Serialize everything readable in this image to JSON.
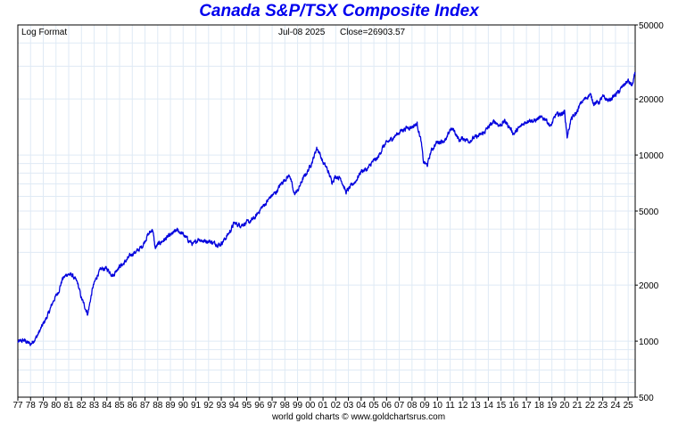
{
  "title": "Canada S&P/TSX Composite Index",
  "scale_note": "Log Format",
  "last_date": "Jul-08  2025",
  "close_label": "Close=26903.57",
  "footer": "world gold charts © www.goldchartsrus.com",
  "colors": {
    "title": "#0000ee",
    "line": "#0000dd",
    "grid": "#dfeaf5"
  },
  "chart_data": {
    "type": "line",
    "title": "Canada S&P/TSX Composite Index",
    "xlabel": "",
    "ylabel": "",
    "scale": "log",
    "grid": true,
    "xlim": [
      1977.0,
      2025.55
    ],
    "ylim": [
      500,
      50000
    ],
    "y_ticks": [
      500,
      1000,
      2000,
      5000,
      10000,
      20000,
      50000
    ],
    "y_tick_labels": [
      "500",
      "1000",
      "2000",
      "5000",
      "10000",
      "20000",
      "50000"
    ],
    "x_tick_labels": [
      "77",
      "78",
      "79",
      "80",
      "81",
      "82",
      "83",
      "84",
      "85",
      "86",
      "87",
      "88",
      "89",
      "90",
      "91",
      "92",
      "93",
      "94",
      "95",
      "96",
      "97",
      "98",
      "99",
      "00",
      "01",
      "02",
      "03",
      "04",
      "05",
      "06",
      "07",
      "08",
      "09",
      "10",
      "11",
      "12",
      "13",
      "14",
      "15",
      "16",
      "17",
      "18",
      "19",
      "20",
      "21",
      "22",
      "23",
      "24",
      "25"
    ],
    "series": [
      {
        "x": [
          1977.0,
          1977.5,
          1978.0,
          1978.5,
          1978.9,
          1979.4,
          1979.8,
          1980.2,
          1980.5,
          1980.9,
          1981.3,
          1981.7,
          1982.0,
          1982.5,
          1982.9,
          1983.3,
          1983.6,
          1984.0,
          1984.5,
          1984.9,
          1985.3,
          1985.7,
          1986.0,
          1986.4,
          1986.8,
          1987.2,
          1987.6,
          1987.8,
          1988.0,
          1988.5,
          1989.0,
          1989.5,
          1989.9,
          1990.4,
          1990.8,
          1991.2,
          1991.6,
          1992.0,
          1992.5,
          1992.9,
          1993.3,
          1993.7,
          1994.0,
          1994.5,
          1994.9,
          1995.3,
          1995.7,
          1996.1,
          1996.5,
          1996.9,
          1997.3,
          1997.7,
          1998.0,
          1998.4,
          1998.7,
          1999.0,
          1999.4,
          1999.8,
          2000.2,
          2000.5,
          2000.7,
          2001.0,
          2001.3,
          2001.7,
          2002.0,
          2002.4,
          2002.8,
          2003.2,
          2003.6,
          2004.0,
          2004.5,
          2004.9,
          2005.3,
          2005.7,
          2006.0,
          2006.4,
          2006.8,
          2007.2,
          2007.6,
          2008.0,
          2008.4,
          2008.7,
          2008.9,
          2009.2,
          2009.5,
          2009.9,
          2010.3,
          2010.7,
          2011.0,
          2011.3,
          2011.7,
          2012.0,
          2012.5,
          2012.9,
          2013.3,
          2013.7,
          2014.0,
          2014.5,
          2014.9,
          2015.3,
          2015.7,
          2016.0,
          2016.4,
          2016.8,
          2017.2,
          2017.6,
          2018.0,
          2018.5,
          2018.9,
          2019.3,
          2019.7,
          2020.0,
          2020.2,
          2020.5,
          2020.9,
          2021.3,
          2021.7,
          2022.0,
          2022.3,
          2022.7,
          2023.0,
          2023.5,
          2023.9,
          2024.3,
          2024.7,
          2025.0,
          2025.3,
          2025.52
        ],
        "y": [
          990,
          1010,
          960,
          1060,
          1200,
          1400,
          1650,
          1850,
          2150,
          2300,
          2250,
          2050,
          1700,
          1400,
          1950,
          2300,
          2450,
          2450,
          2250,
          2500,
          2600,
          2800,
          2950,
          3050,
          3250,
          3700,
          4000,
          3150,
          3300,
          3500,
          3700,
          3950,
          3800,
          3500,
          3300,
          3550,
          3450,
          3450,
          3350,
          3300,
          3550,
          3900,
          4300,
          4200,
          4300,
          4400,
          4650,
          5150,
          5500,
          6000,
          6300,
          7000,
          7400,
          7800,
          6200,
          6400,
          7400,
          8200,
          9400,
          10900,
          10400,
          9100,
          8500,
          7200,
          7700,
          7500,
          6300,
          6800,
          7300,
          8200,
          8400,
          9200,
          9600,
          11000,
          11600,
          12200,
          12900,
          13600,
          14000,
          14200,
          14700,
          12000,
          9200,
          8800,
          10500,
          11600,
          11900,
          12000,
          13800,
          13600,
          12000,
          12300,
          11900,
          12400,
          12700,
          13300,
          14100,
          15200,
          14400,
          15200,
          14000,
          13000,
          13900,
          14800,
          15500,
          15200,
          15800,
          15700,
          14200,
          16400,
          16600,
          17100,
          12500,
          15500,
          16700,
          19100,
          20300,
          21200,
          19000,
          19200,
          20500,
          19600,
          20800,
          22000,
          24000,
          25000,
          23500,
          26903.57
        ]
      }
    ]
  }
}
